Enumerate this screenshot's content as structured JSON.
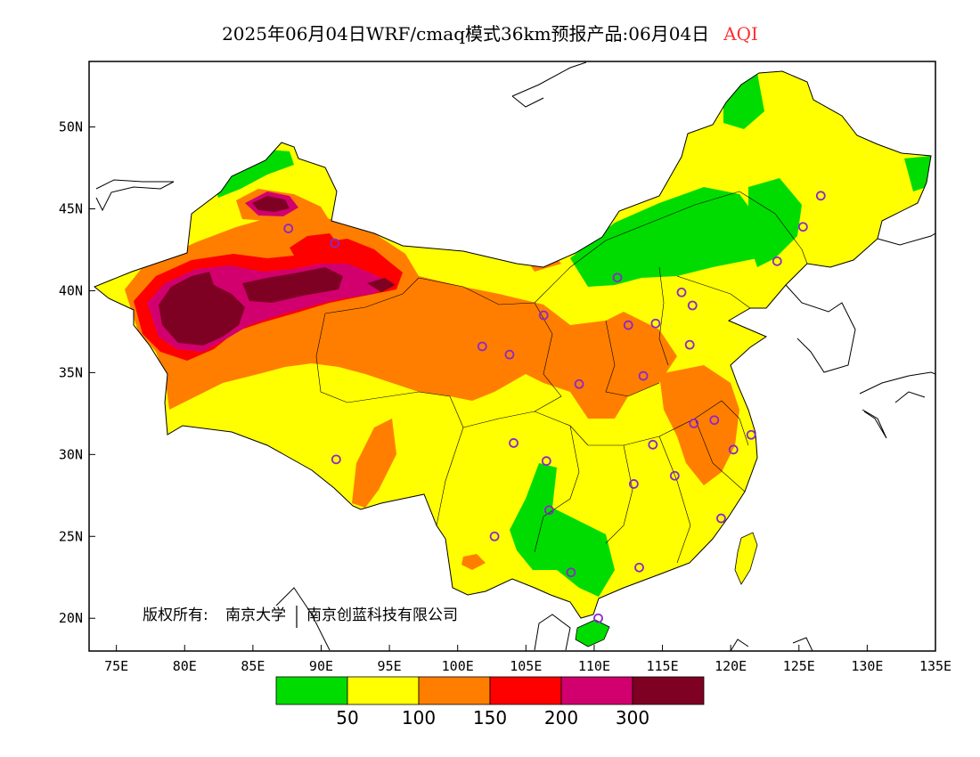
{
  "title": {
    "text": "2025年06月04日WRF/cmaq模式36km预报产品:06月04日",
    "variable": "AQI"
  },
  "copyright": {
    "prefix": "版权所有:",
    "org1": "南京大学",
    "org2": "南京创蓝科技有限公司"
  },
  "map": {
    "lon_range": [
      73,
      135
    ],
    "lat_range": [
      18,
      54
    ],
    "lon_ticks": [
      {
        "v": 75,
        "label": "75E"
      },
      {
        "v": 80,
        "label": "80E"
      },
      {
        "v": 85,
        "label": "85E"
      },
      {
        "v": 90,
        "label": "90E"
      },
      {
        "v": 95,
        "label": "95E"
      },
      {
        "v": 100,
        "label": "100E"
      },
      {
        "v": 105,
        "label": "105E"
      },
      {
        "v": 110,
        "label": "110E"
      },
      {
        "v": 115,
        "label": "115E"
      },
      {
        "v": 120,
        "label": "120E"
      },
      {
        "v": 125,
        "label": "125E"
      },
      {
        "v": 130,
        "label": "130E"
      },
      {
        "v": 135,
        "label": "135E"
      }
    ],
    "lat_ticks": [
      {
        "v": 20,
        "label": "20N"
      },
      {
        "v": 25,
        "label": "25N"
      },
      {
        "v": 30,
        "label": "30N"
      },
      {
        "v": 35,
        "label": "35N"
      },
      {
        "v": 40,
        "label": "40N"
      },
      {
        "v": 45,
        "label": "45N"
      },
      {
        "v": 50,
        "label": "50N"
      }
    ],
    "colors": {
      "good": "#00dc00",
      "moderate": "#ffff00",
      "usg": "#ff7e00",
      "unhealthy": "#ff0000",
      "very_unhealthy": "#d2006e",
      "hazardous": "#7e0023",
      "city_marker": "#8c28c8"
    },
    "cities": [
      {
        "lon": 126.6,
        "lat": 45.8
      },
      {
        "lon": 125.3,
        "lat": 43.9
      },
      {
        "lon": 123.4,
        "lat": 41.8
      },
      {
        "lon": 111.7,
        "lat": 40.8
      },
      {
        "lon": 116.4,
        "lat": 39.9
      },
      {
        "lon": 117.2,
        "lat": 39.1
      },
      {
        "lon": 112.5,
        "lat": 37.9
      },
      {
        "lon": 114.5,
        "lat": 38.0
      },
      {
        "lon": 117.0,
        "lat": 36.7
      },
      {
        "lon": 106.3,
        "lat": 38.5
      },
      {
        "lon": 101.8,
        "lat": 36.6
      },
      {
        "lon": 103.8,
        "lat": 36.1
      },
      {
        "lon": 108.9,
        "lat": 34.3
      },
      {
        "lon": 113.6,
        "lat": 34.8
      },
      {
        "lon": 117.3,
        "lat": 31.9
      },
      {
        "lon": 118.8,
        "lat": 32.1
      },
      {
        "lon": 121.5,
        "lat": 31.2
      },
      {
        "lon": 120.2,
        "lat": 30.3
      },
      {
        "lon": 114.3,
        "lat": 30.6
      },
      {
        "lon": 115.9,
        "lat": 28.7
      },
      {
        "lon": 112.9,
        "lat": 28.2
      },
      {
        "lon": 104.1,
        "lat": 30.7
      },
      {
        "lon": 106.5,
        "lat": 29.6
      },
      {
        "lon": 106.7,
        "lat": 26.6
      },
      {
        "lon": 102.7,
        "lat": 25.0
      },
      {
        "lon": 108.3,
        "lat": 22.8
      },
      {
        "lon": 113.3,
        "lat": 23.1
      },
      {
        "lon": 119.3,
        "lat": 26.1
      },
      {
        "lon": 110.3,
        "lat": 20.0
      },
      {
        "lon": 91.1,
        "lat": 29.7
      },
      {
        "lon": 87.6,
        "lat": 43.8
      },
      {
        "lon": 91.0,
        "lat": 42.9
      }
    ]
  },
  "colorbar": {
    "colors": [
      "#00dc00",
      "#ffff00",
      "#ff7e00",
      "#ff0000",
      "#d2006e",
      "#7e0023"
    ],
    "labels": [
      "50",
      "100",
      "150",
      "200",
      "300"
    ]
  }
}
